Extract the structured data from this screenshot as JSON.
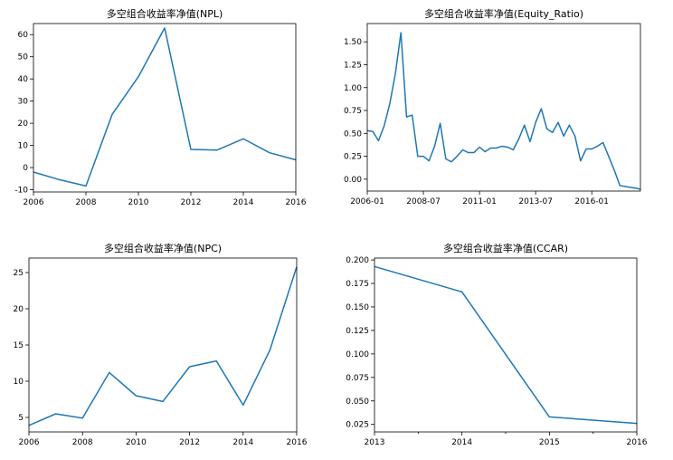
{
  "chart_data": [
    {
      "type": "line",
      "title": "多空组合收益率净值(NPL)",
      "x_tick_labels": [
        "2006",
        "2008",
        "2010",
        "2012",
        "2014",
        "2016"
      ],
      "y_tick_labels": [
        "-10",
        "0",
        "10",
        "20",
        "30",
        "40",
        "50",
        "60"
      ],
      "xlim": [
        2006,
        2016
      ],
      "ylim": [
        -11,
        65
      ],
      "x": [
        2006,
        2007,
        2008,
        2009,
        2010,
        2011,
        2012,
        2013,
        2014,
        2015,
        2016
      ],
      "series": [
        {
          "values": [
            -2,
            -5.5,
            -8.3,
            24,
            41,
            63,
            8.2,
            7.9,
            13,
            6.7,
            3.5
          ]
        }
      ],
      "color": "#1f77b4"
    },
    {
      "type": "line",
      "title": "多空组合收益率净值(Equity_Ratio)",
      "x_tick_labels": [
        "2006-01",
        "2008-07",
        "2011-01",
        "2013-07",
        "2016-01"
      ],
      "y_tick_labels": [
        "0.00",
        "0.25",
        "0.50",
        "0.75",
        "1.00",
        "1.25",
        "1.50"
      ],
      "xlim": [
        "2006-01",
        "2018-03"
      ],
      "ylim": [
        -0.13,
        1.7
      ],
      "x": [
        "2006-01",
        "2006-04",
        "2006-07",
        "2006-10",
        "2007-01",
        "2007-04",
        "2007-07",
        "2007-10",
        "2008-01",
        "2008-04",
        "2008-07",
        "2008-10",
        "2009-01",
        "2009-04",
        "2009-07",
        "2009-10",
        "2010-01",
        "2010-04",
        "2010-07",
        "2010-10",
        "2011-01",
        "2011-04",
        "2011-07",
        "2011-10",
        "2012-01",
        "2012-04",
        "2012-07",
        "2012-10",
        "2013-01",
        "2013-04",
        "2013-07",
        "2013-10",
        "2014-01",
        "2014-04",
        "2014-07",
        "2014-10",
        "2015-01",
        "2015-04",
        "2015-07",
        "2015-10",
        "2016-01",
        "2016-04",
        "2016-07",
        "2016-10",
        "2017-01",
        "2017-04",
        "2017-07",
        "2017-10",
        "2018-01",
        "2018-03"
      ],
      "series": [
        {
          "values": [
            0.53,
            0.52,
            0.42,
            0.58,
            0.82,
            1.15,
            1.6,
            0.68,
            0.7,
            0.25,
            0.25,
            0.2,
            0.36,
            0.61,
            0.22,
            0.19,
            0.25,
            0.32,
            0.29,
            0.29,
            0.35,
            0.3,
            0.34,
            0.34,
            0.36,
            0.35,
            0.32,
            0.44,
            0.59,
            0.41,
            0.62,
            0.77,
            0.55,
            0.51,
            0.62,
            0.47,
            0.59,
            0.47,
            0.2,
            0.33,
            0.33,
            0.36,
            0.4,
            0.25,
            0.1,
            -0.07,
            -0.08,
            -0.09,
            -0.1,
            -0.11
          ]
        }
      ],
      "color": "#1f77b4"
    },
    {
      "type": "line",
      "title": "多空组合收益率净值(NPC)",
      "x_tick_labels": [
        "2006",
        "2008",
        "2010",
        "2012",
        "2014",
        "2016"
      ],
      "y_tick_labels": [
        "5",
        "10",
        "15",
        "20",
        "25"
      ],
      "xlim": [
        2006,
        2016
      ],
      "ylim": [
        3.0,
        27.0
      ],
      "x": [
        2006,
        2007,
        2008,
        2009,
        2010,
        2011,
        2012,
        2013,
        2014,
        2015,
        2016
      ],
      "series": [
        {
          "values": [
            3.9,
            5.5,
            4.9,
            11.2,
            8.0,
            7.2,
            12.0,
            12.8,
            6.7,
            14.3,
            25.8
          ]
        }
      ],
      "color": "#1f77b4"
    },
    {
      "type": "line",
      "title": "多空组合收益率净值(CCAR)",
      "x_tick_labels": [
        "2013",
        "2014",
        "2015",
        "2016"
      ],
      "y_tick_labels": [
        "0.025",
        "0.050",
        "0.075",
        "0.100",
        "0.125",
        "0.150",
        "0.175",
        "0.200"
      ],
      "xlim": [
        2013,
        2016
      ],
      "ylim": [
        0.017,
        0.202
      ],
      "x": [
        2013,
        2014,
        2015,
        2016
      ],
      "series": [
        {
          "values": [
            0.193,
            0.166,
            0.033,
            0.026
          ]
        }
      ],
      "color": "#1f77b4"
    }
  ]
}
